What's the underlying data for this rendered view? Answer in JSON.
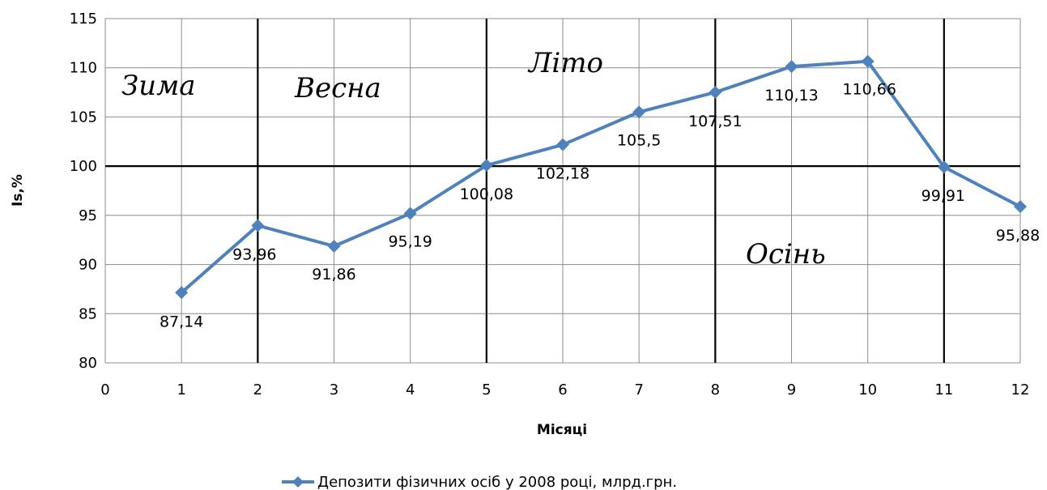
{
  "chart_data": {
    "type": "line",
    "xlabel": "Місяці",
    "ylabel": "Is,%",
    "xlim": [
      0,
      12
    ],
    "ylim": [
      80,
      115
    ],
    "x_ticks": [
      "0",
      "1",
      "2",
      "3",
      "4",
      "5",
      "6",
      "7",
      "8",
      "9",
      "10",
      "11",
      "12"
    ],
    "y_ticks": [
      "80",
      "85",
      "90",
      "95",
      "100",
      "105",
      "110",
      "115"
    ],
    "grid": true,
    "legend_position": "bottom",
    "series": [
      {
        "name": "Депозити фізичних осіб у 2008 році, млрд.грн.",
        "color": "#4F81BD",
        "marker": "diamond",
        "x": [
          1,
          2,
          3,
          4,
          5,
          6,
          7,
          8,
          9,
          10,
          11,
          12
        ],
        "y": [
          87.14,
          93.96,
          91.86,
          95.19,
          100.08,
          102.18,
          105.5,
          107.51,
          110.13,
          110.66,
          99.91,
          95.88
        ],
        "labels": [
          "87,14",
          "93,96",
          "91,86",
          "95,19",
          "100,08",
          "102,18",
          "105,5",
          "107,51",
          "110,13",
          "110,66",
          "99,91",
          "95,88"
        ]
      }
    ],
    "reference_lines": {
      "horizontal_y": 100,
      "vertical_x": [
        2,
        5,
        8,
        11
      ]
    },
    "annotations": [
      "Зима",
      "Весна",
      "Літо",
      "Осінь"
    ]
  }
}
